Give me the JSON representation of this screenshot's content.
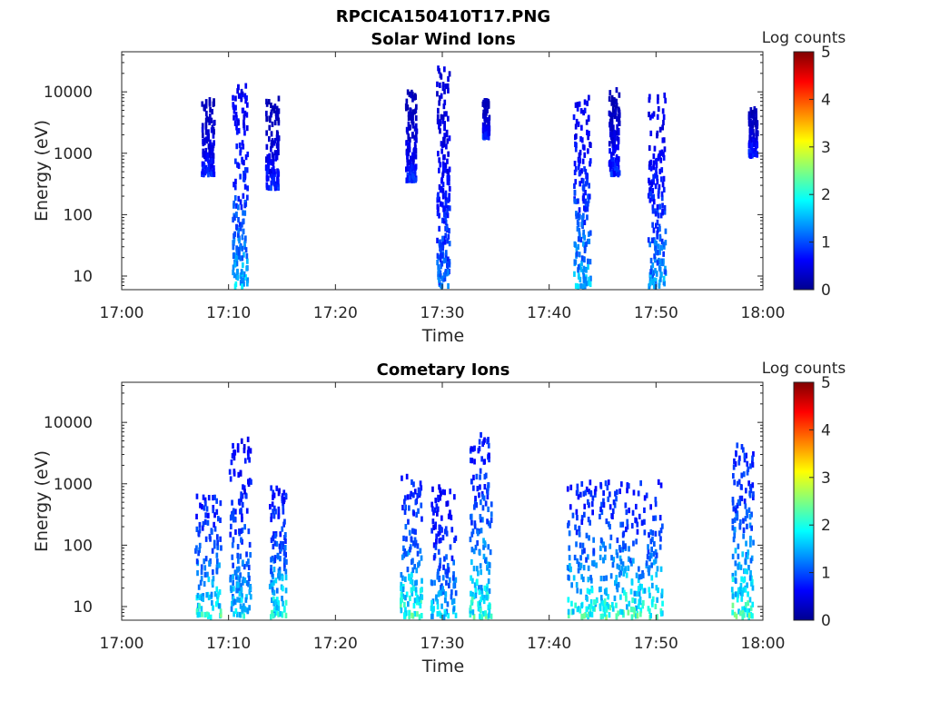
{
  "figure_title": "RPCICA150410T17.PNG",
  "chart_data": [
    {
      "type": "heatmap",
      "title": "Solar Wind Ions",
      "xlabel": "Time",
      "ylabel": "Energy (eV)",
      "xlim": [
        "17:00",
        "18:00"
      ],
      "xticks": [
        "17:00",
        "17:10",
        "17:20",
        "17:30",
        "17:40",
        "17:50",
        "18:00"
      ],
      "ylim": [
        6,
        45000
      ],
      "yscale": "log",
      "yticks": [
        10,
        100,
        1000,
        10000
      ],
      "ytick_labels": [
        "10",
        "100",
        "1000",
        "10000"
      ],
      "colorbar": {
        "label": "Log counts",
        "range": [
          0,
          5
        ],
        "ticks": [
          "0",
          "1",
          "2",
          "3",
          "4",
          "5"
        ],
        "colormap": "jet"
      },
      "bursts": [
        {
          "t": "17:08",
          "e_min": 500,
          "e_max": 10000,
          "peak_log_counts": 1,
          "spread_min": 0.6
        },
        {
          "t": "17:11",
          "e_min": 6,
          "e_max": 16000,
          "peak_log_counts": 2,
          "spread_min": 0.7
        },
        {
          "t": "17:14",
          "e_min": 300,
          "e_max": 9000,
          "peak_log_counts": 1,
          "spread_min": 0.6
        },
        {
          "t": "17:27",
          "e_min": 400,
          "e_max": 12000,
          "peak_log_counts": 1,
          "spread_min": 0.5
        },
        {
          "t": "17:30",
          "e_min": 6,
          "e_max": 28000,
          "peak_log_counts": 1.5,
          "spread_min": 0.6
        },
        {
          "t": "17:34",
          "e_min": 2000,
          "e_max": 8000,
          "peak_log_counts": 1,
          "spread_min": 0.3
        },
        {
          "t": "17:43",
          "e_min": 6,
          "e_max": 9000,
          "peak_log_counts": 2,
          "spread_min": 0.8
        },
        {
          "t": "17:46",
          "e_min": 500,
          "e_max": 12000,
          "peak_log_counts": 1,
          "spread_min": 0.5
        },
        {
          "t": "17:50",
          "e_min": 6,
          "e_max": 10000,
          "peak_log_counts": 1.8,
          "spread_min": 0.8
        },
        {
          "t": "17:59",
          "e_min": 1000,
          "e_max": 6000,
          "peak_log_counts": 1,
          "spread_min": 0.4
        }
      ]
    },
    {
      "type": "heatmap",
      "title": "Cometary Ions",
      "xlabel": "Time",
      "ylabel": "Energy (eV)",
      "xlim": [
        "17:00",
        "18:00"
      ],
      "xticks": [
        "17:00",
        "17:10",
        "17:20",
        "17:30",
        "17:40",
        "17:50",
        "18:00"
      ],
      "ylim": [
        6,
        45000
      ],
      "yscale": "log",
      "yticks": [
        10,
        100,
        1000,
        10000
      ],
      "ytick_labels": [
        "10",
        "100",
        "1000",
        "10000"
      ],
      "colorbar": {
        "label": "Log counts",
        "range": [
          0,
          5
        ],
        "ticks": [
          "0",
          "1",
          "2",
          "3",
          "4",
          "5"
        ],
        "colormap": "jet"
      },
      "bursts": [
        {
          "t": "17:08",
          "e_min": 6,
          "e_max": 800,
          "peak_log_counts": 2.7,
          "spread_min": 1.2
        },
        {
          "t": "17:11",
          "e_min": 6,
          "e_max": 6000,
          "peak_log_counts": 2.2,
          "spread_min": 1.0
        },
        {
          "t": "17:14.5",
          "e_min": 6,
          "e_max": 1000,
          "peak_log_counts": 2.6,
          "spread_min": 0.8
        },
        {
          "t": "17:27",
          "e_min": 6,
          "e_max": 1500,
          "peak_log_counts": 2.8,
          "spread_min": 1.0
        },
        {
          "t": "17:30",
          "e_min": 6,
          "e_max": 1000,
          "peak_log_counts": 2.2,
          "spread_min": 1.2
        },
        {
          "t": "17:33.5",
          "e_min": 6,
          "e_max": 7000,
          "peak_log_counts": 2.7,
          "spread_min": 1.0
        },
        {
          "t": "17:43",
          "e_min": 6,
          "e_max": 1200,
          "peak_log_counts": 2.7,
          "spread_min": 1.4
        },
        {
          "t": "17:46",
          "e_min": 6,
          "e_max": 1200,
          "peak_log_counts": 2.8,
          "spread_min": 1.4
        },
        {
          "t": "17:49",
          "e_min": 6,
          "e_max": 1200,
          "peak_log_counts": 2.7,
          "spread_min": 1.5
        },
        {
          "t": "17:58",
          "e_min": 6,
          "e_max": 5000,
          "peak_log_counts": 2.8,
          "spread_min": 1.0
        }
      ]
    }
  ]
}
